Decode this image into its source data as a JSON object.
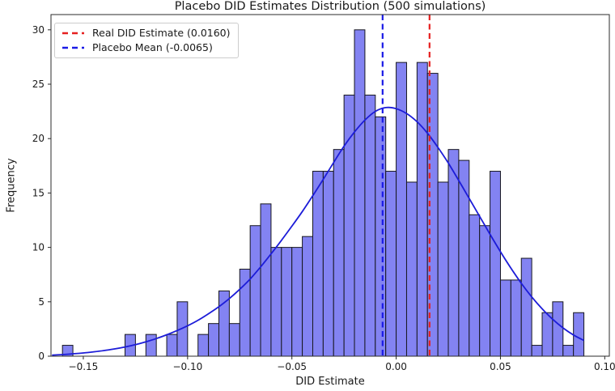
{
  "figure": {
    "title": "Placebo DID Estimates Distribution (500 simulations)",
    "xlabel": "DID Estimate",
    "ylabel": "Frequency"
  },
  "legend": {
    "items": [
      {
        "label": "Real DID Estimate (0.0160)",
        "color": "#e62020",
        "style": "dashed"
      },
      {
        "label": "Placebo Mean (-0.0065)",
        "color": "#1a1ae6",
        "style": "dashed"
      }
    ]
  },
  "chart_data": {
    "type": "histogram",
    "title": "Placebo DID Estimates Distribution (500 simulations)",
    "xlabel": "DID Estimate",
    "ylabel": "Frequency",
    "n_total": 500,
    "bins": {
      "start": -0.16,
      "width": 0.005,
      "counts": [
        1,
        0,
        0,
        0,
        0,
        0,
        2,
        0,
        2,
        0,
        2,
        5,
        0,
        2,
        3,
        6,
        3,
        8,
        12,
        14,
        10,
        10,
        10,
        11,
        17,
        17,
        19,
        24,
        30,
        24,
        22,
        17,
        27,
        16,
        27,
        26,
        16,
        19,
        18,
        13,
        12,
        17,
        7,
        7,
        9,
        1,
        4,
        5,
        1,
        4
      ]
    },
    "kde_points": [
      [
        -0.165,
        0.1
      ],
      [
        -0.16,
        0.15
      ],
      [
        -0.155,
        0.22
      ],
      [
        -0.15,
        0.3
      ],
      [
        -0.145,
        0.4
      ],
      [
        -0.14,
        0.52
      ],
      [
        -0.135,
        0.67
      ],
      [
        -0.13,
        0.85
      ],
      [
        -0.125,
        1.06
      ],
      [
        -0.12,
        1.32
      ],
      [
        -0.115,
        1.62
      ],
      [
        -0.11,
        1.97
      ],
      [
        -0.105,
        2.36
      ],
      [
        -0.1,
        2.8
      ],
      [
        -0.095,
        3.3
      ],
      [
        -0.09,
        3.9
      ],
      [
        -0.085,
        4.55
      ],
      [
        -0.08,
        5.3
      ],
      [
        -0.075,
        6.15
      ],
      [
        -0.07,
        7.1
      ],
      [
        -0.065,
        8.2
      ],
      [
        -0.06,
        9.4
      ],
      [
        -0.055,
        10.65
      ],
      [
        -0.05,
        11.95
      ],
      [
        -0.045,
        13.3
      ],
      [
        -0.04,
        14.75
      ],
      [
        -0.035,
        16.25
      ],
      [
        -0.03,
        17.8
      ],
      [
        -0.025,
        19.3
      ],
      [
        -0.02,
        20.6
      ],
      [
        -0.015,
        21.7
      ],
      [
        -0.01,
        22.5
      ],
      [
        -0.005,
        22.85
      ],
      [
        0.0,
        22.75
      ],
      [
        0.005,
        22.3
      ],
      [
        0.01,
        21.55
      ],
      [
        0.015,
        20.5
      ],
      [
        0.02,
        19.2
      ],
      [
        0.025,
        17.75
      ],
      [
        0.03,
        16.15
      ],
      [
        0.035,
        14.5
      ],
      [
        0.04,
        12.85
      ],
      [
        0.045,
        11.2
      ],
      [
        0.05,
        9.6
      ],
      [
        0.055,
        8.1
      ],
      [
        0.06,
        6.7
      ],
      [
        0.065,
        5.45
      ],
      [
        0.07,
        4.35
      ],
      [
        0.075,
        3.4
      ],
      [
        0.08,
        2.6
      ],
      [
        0.085,
        1.95
      ],
      [
        0.09,
        1.45
      ]
    ],
    "vlines": [
      {
        "name": "real-did-estimate",
        "x": 0.016,
        "color": "#e62020",
        "label": "Real DID Estimate (0.0160)"
      },
      {
        "name": "placebo-mean",
        "x": -0.0065,
        "color": "#1a1ae6",
        "label": "Placebo Mean (-0.0065)"
      }
    ],
    "xticks": {
      "values": [
        -0.15,
        -0.1,
        -0.05,
        0.0,
        0.05,
        0.1
      ],
      "labels": [
        "−0.15",
        "−0.10",
        "−0.05",
        "0.00",
        "0.05",
        "0.10"
      ]
    },
    "yticks": [
      0,
      5,
      10,
      15,
      20,
      25,
      30
    ],
    "xlim": [
      -0.1655,
      0.1022
    ],
    "ylim": [
      0,
      31.4
    ],
    "grid": false,
    "legend_position": "upper-left",
    "bar_fill": "#8383f2",
    "bar_edge": "#17171f",
    "kde_color": "#1c1cd8",
    "axis_color": "#2b2b2b"
  }
}
